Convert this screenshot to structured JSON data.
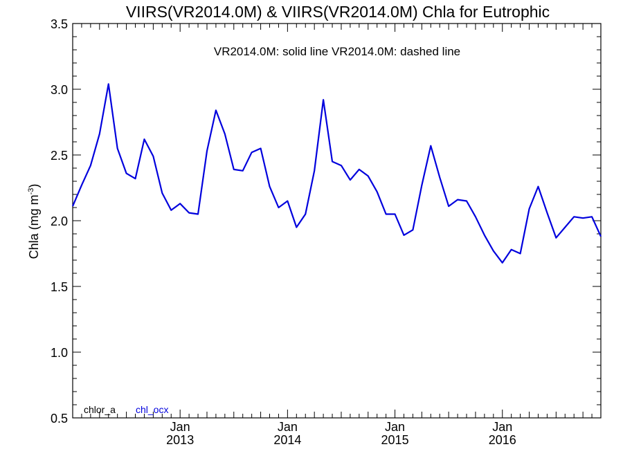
{
  "chart_data": {
    "type": "line",
    "title": "VIIRS(VR2014.0M) & VIIRS(VR2014.0M)  Chla for Eutrophic",
    "annotation": "VR2014.0M: solid line   VR2014.0M: dashed line",
    "ylabel": "Chla (mg m",
    "ylabel_sup": "-3",
    "ylabel_close": ")",
    "ylim": [
      0.5,
      3.5
    ],
    "yticks": [
      0.5,
      1.0,
      1.5,
      2.0,
      2.5,
      3.0,
      3.5
    ],
    "ytick_labels": [
      "0.5",
      "1.0",
      "1.5",
      "2.0",
      "2.5",
      "3.0",
      "3.5"
    ],
    "xlim": [
      "2012-01",
      "2016-12"
    ],
    "xticks": [
      {
        "date": "2013-01",
        "month": "Jan",
        "year": "2013"
      },
      {
        "date": "2014-01",
        "month": "Jan",
        "year": "2014"
      },
      {
        "date": "2015-01",
        "month": "Jan",
        "year": "2015"
      },
      {
        "date": "2016-01",
        "month": "Jan",
        "year": "2016"
      }
    ],
    "legend": {
      "placement": "bottom-left",
      "entries": [
        {
          "label": "chlor_a",
          "color": "#000000"
        },
        {
          "label": "chl_ocx",
          "color": "#0000dd"
        }
      ]
    },
    "series": [
      {
        "color": "#0000dd",
        "x": [
          "2012-01",
          "2012-02",
          "2012-03",
          "2012-04",
          "2012-05",
          "2012-06",
          "2012-07",
          "2012-08",
          "2012-09",
          "2012-10",
          "2012-11",
          "2012-12",
          "2013-01",
          "2013-02",
          "2013-03",
          "2013-04",
          "2013-05",
          "2013-06",
          "2013-07",
          "2013-08",
          "2013-09",
          "2013-10",
          "2013-11",
          "2013-12",
          "2014-01",
          "2014-02",
          "2014-03",
          "2014-04",
          "2014-05",
          "2014-06",
          "2014-07",
          "2014-08",
          "2014-09",
          "2014-10",
          "2014-11",
          "2014-12",
          "2015-01",
          "2015-02",
          "2015-03",
          "2015-04",
          "2015-05",
          "2015-06",
          "2015-07",
          "2015-08",
          "2015-09",
          "2015-10",
          "2015-11",
          "2015-12",
          "2016-01",
          "2016-02",
          "2016-03",
          "2016-04",
          "2016-05",
          "2016-06",
          "2016-07",
          "2016-08",
          "2016-09",
          "2016-10",
          "2016-11",
          "2016-12"
        ],
        "values": [
          2.11,
          2.27,
          2.42,
          2.66,
          3.04,
          2.55,
          2.36,
          2.32,
          2.62,
          2.49,
          2.21,
          2.08,
          2.13,
          2.06,
          2.05,
          2.53,
          2.84,
          2.66,
          2.39,
          2.38,
          2.52,
          2.55,
          2.26,
          2.1,
          2.15,
          1.95,
          2.05,
          2.38,
          2.92,
          2.45,
          2.42,
          2.31,
          2.39,
          2.34,
          2.22,
          2.05,
          2.05,
          1.89,
          1.93,
          2.27,
          2.57,
          2.33,
          2.11,
          2.16,
          2.15,
          2.03,
          1.89,
          1.77,
          1.68,
          1.78,
          1.75,
          2.09,
          2.26,
          2.06,
          1.87,
          1.95,
          2.03,
          2.02,
          2.03,
          1.88
        ]
      }
    ]
  }
}
